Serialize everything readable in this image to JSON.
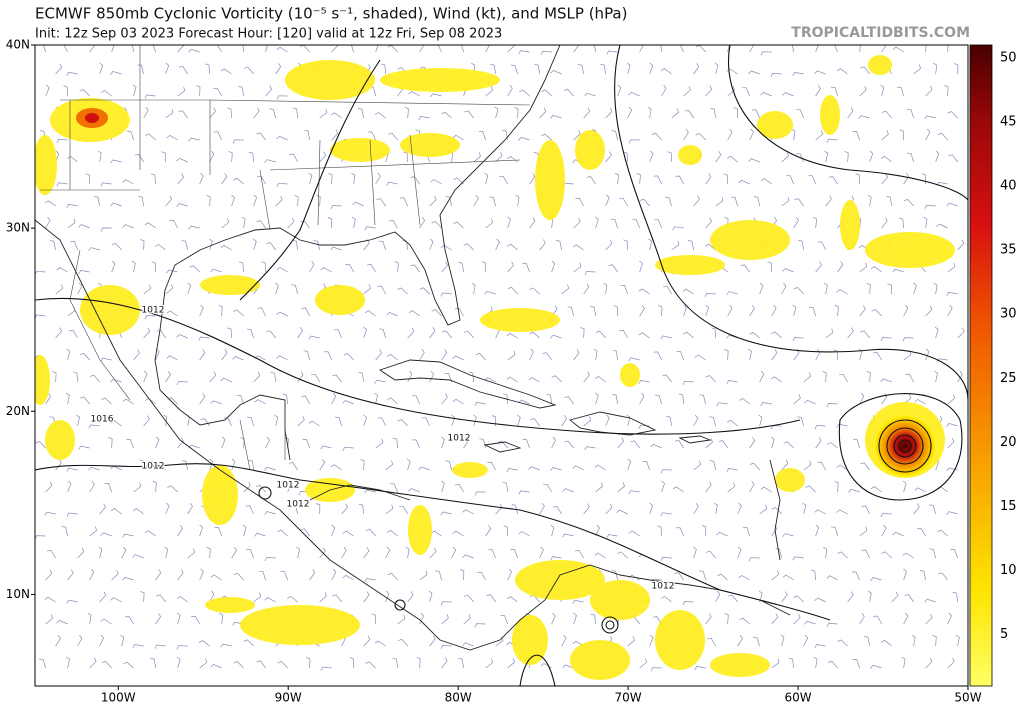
{
  "header": {
    "title": "ECMWF 850mb Cyclonic Vorticity (10⁻⁵ s⁻¹, shaded), Wind (kt), and MSLP (hPa)",
    "subtitle": "Init: 12z Sep 03 2023   Forecast Hour: [120]   valid at 12z Fri, Sep 08 2023",
    "source": "TROPICALTIDBITS.COM"
  },
  "map": {
    "lon_range": [
      -104.9,
      -50
    ],
    "lat_range": [
      5,
      40
    ],
    "lon_ticks": [
      {
        "value": -100,
        "label": "100W"
      },
      {
        "value": -90,
        "label": "90W"
      },
      {
        "value": -80,
        "label": "80W"
      },
      {
        "value": -70,
        "label": "70W"
      },
      {
        "value": -60,
        "label": "60W"
      },
      {
        "value": -50,
        "label": "50W"
      }
    ],
    "lat_ticks": [
      {
        "value": 40,
        "label": "40N"
      },
      {
        "value": 30,
        "label": "30N"
      },
      {
        "value": 20,
        "label": "20N"
      },
      {
        "value": 10,
        "label": "10N"
      }
    ],
    "isobar_labels": [
      "1012",
      "1016",
      "1012",
      "1012",
      "1012",
      "1012",
      "1012"
    ]
  },
  "colorbar": {
    "range": [
      1,
      51
    ],
    "ticks": [
      5,
      10,
      15,
      20,
      25,
      30,
      35,
      40,
      45,
      50
    ]
  }
}
